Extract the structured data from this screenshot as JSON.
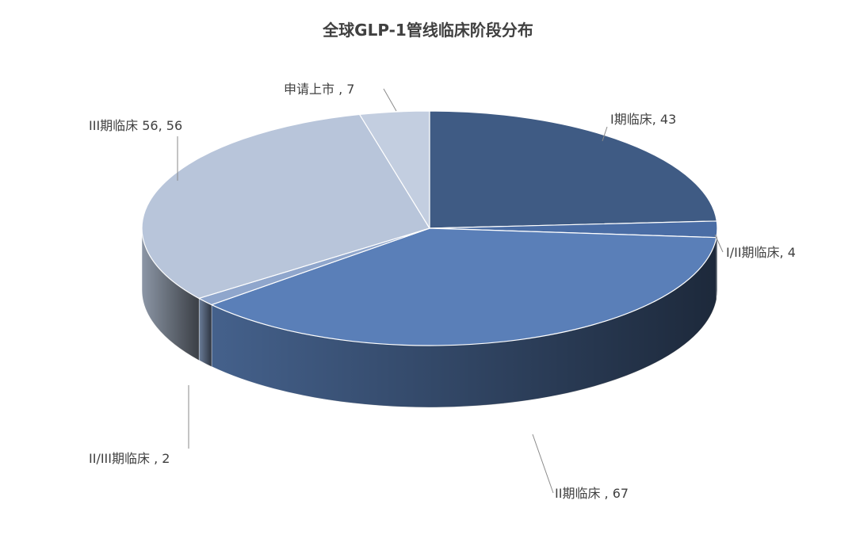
{
  "chart_data": {
    "type": "pie",
    "title": "全球GLP-1管线临床阶段分布",
    "style": "3d-exploded-none",
    "start_angle": "12 o'clock, clockwise",
    "slices": [
      {
        "label": "I期临床, 43",
        "name": "I期临床",
        "value": 43,
        "color": "#3f5b84"
      },
      {
        "label": "I/II期临床, 4",
        "name": "I/II期临床",
        "value": 4,
        "color": "#4a6da5"
      },
      {
        "label": "II期临床 , 67",
        "name": "II期临床",
        "value": 67,
        "color": "#5a7fb8"
      },
      {
        "label": "II/III期临床 , 2",
        "name": "II/III期临床",
        "value": 2,
        "color": "#8fa6cc"
      },
      {
        "label": "III期临床 56, 56",
        "name": "III期临床",
        "value": 56,
        "color": "#b8c5da"
      },
      {
        "label": "申请上市 , 7",
        "name": "申请上市",
        "value": 7,
        "color": "#c3cee0"
      }
    ],
    "legend": "none"
  }
}
